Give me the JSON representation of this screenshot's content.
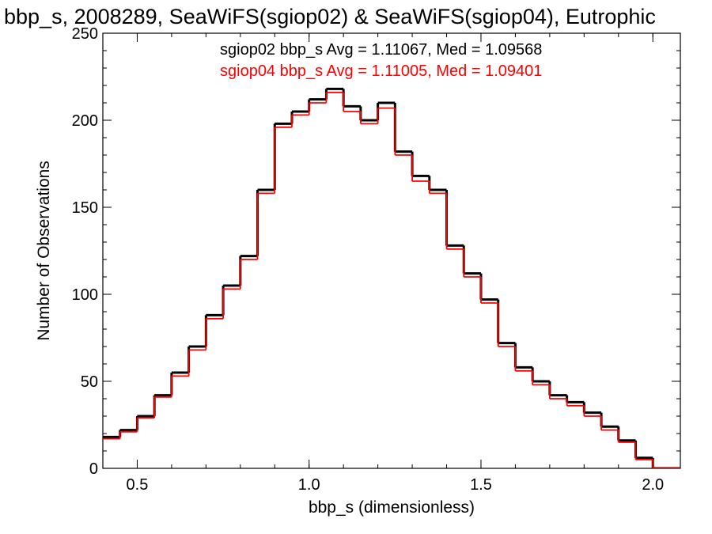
{
  "chart_data": {
    "type": "histogram",
    "title": "bbp_s, 2008289, SeaWiFS(sgiop02) & SeaWiFS(sgiop04), Eutrophic",
    "xlabel": "bbp_s (dimensionless)",
    "ylabel": "Number of Observations",
    "xlim": [
      0.4,
      2.08
    ],
    "ylim": [
      0,
      250
    ],
    "xticks": [
      0.5,
      1.0,
      1.5,
      2.0
    ],
    "xtick_labels": [
      "0.5",
      "1.0",
      "1.5",
      "2.0"
    ],
    "yticks": [
      0,
      50,
      100,
      150,
      200,
      250
    ],
    "ytick_labels": [
      "0",
      "50",
      "100",
      "150",
      "200",
      "250"
    ],
    "annotations": [
      {
        "text": "sgiop02 bbp_s Avg = 1.11067, Med = 1.09568",
        "color": "#000000"
      },
      {
        "text": "sgiop04 bbp_s Avg = 1.11005, Med = 1.09401",
        "color": "#ff0000"
      }
    ],
    "series": [
      {
        "name": "sgiop02",
        "color": "#000000",
        "x": [
          0.4,
          0.45,
          0.5,
          0.55,
          0.6,
          0.65,
          0.7,
          0.75,
          0.8,
          0.85,
          0.9,
          0.95,
          1.0,
          1.05,
          1.1,
          1.15,
          1.2,
          1.25,
          1.3,
          1.35,
          1.4,
          1.45,
          1.5,
          1.55,
          1.6,
          1.65,
          1.7,
          1.75,
          1.8,
          1.85,
          1.9,
          1.95,
          2.0,
          2.05,
          2.08
        ],
        "y": [
          18,
          22,
          30,
          42,
          55,
          70,
          88,
          105,
          122,
          160,
          198,
          205,
          212,
          218,
          208,
          200,
          210,
          182,
          168,
          160,
          128,
          112,
          97,
          72,
          58,
          50,
          42,
          38,
          32,
          24,
          16,
          6,
          0,
          0,
          0
        ]
      },
      {
        "name": "sgiop04",
        "color": "#ff0000",
        "x": [
          0.4,
          0.45,
          0.5,
          0.55,
          0.6,
          0.65,
          0.7,
          0.75,
          0.8,
          0.85,
          0.9,
          0.95,
          1.0,
          1.05,
          1.1,
          1.15,
          1.2,
          1.25,
          1.3,
          1.35,
          1.4,
          1.45,
          1.5,
          1.55,
          1.6,
          1.65,
          1.7,
          1.75,
          1.8,
          1.85,
          1.9,
          1.95,
          2.0,
          2.05,
          2.08
        ],
        "y": [
          17,
          21,
          29,
          41,
          53,
          68,
          86,
          103,
          120,
          158,
          196,
          203,
          210,
          216,
          205,
          198,
          207,
          180,
          165,
          158,
          126,
          110,
          95,
          70,
          56,
          48,
          40,
          36,
          30,
          22,
          15,
          5,
          0,
          0,
          0
        ]
      }
    ]
  }
}
